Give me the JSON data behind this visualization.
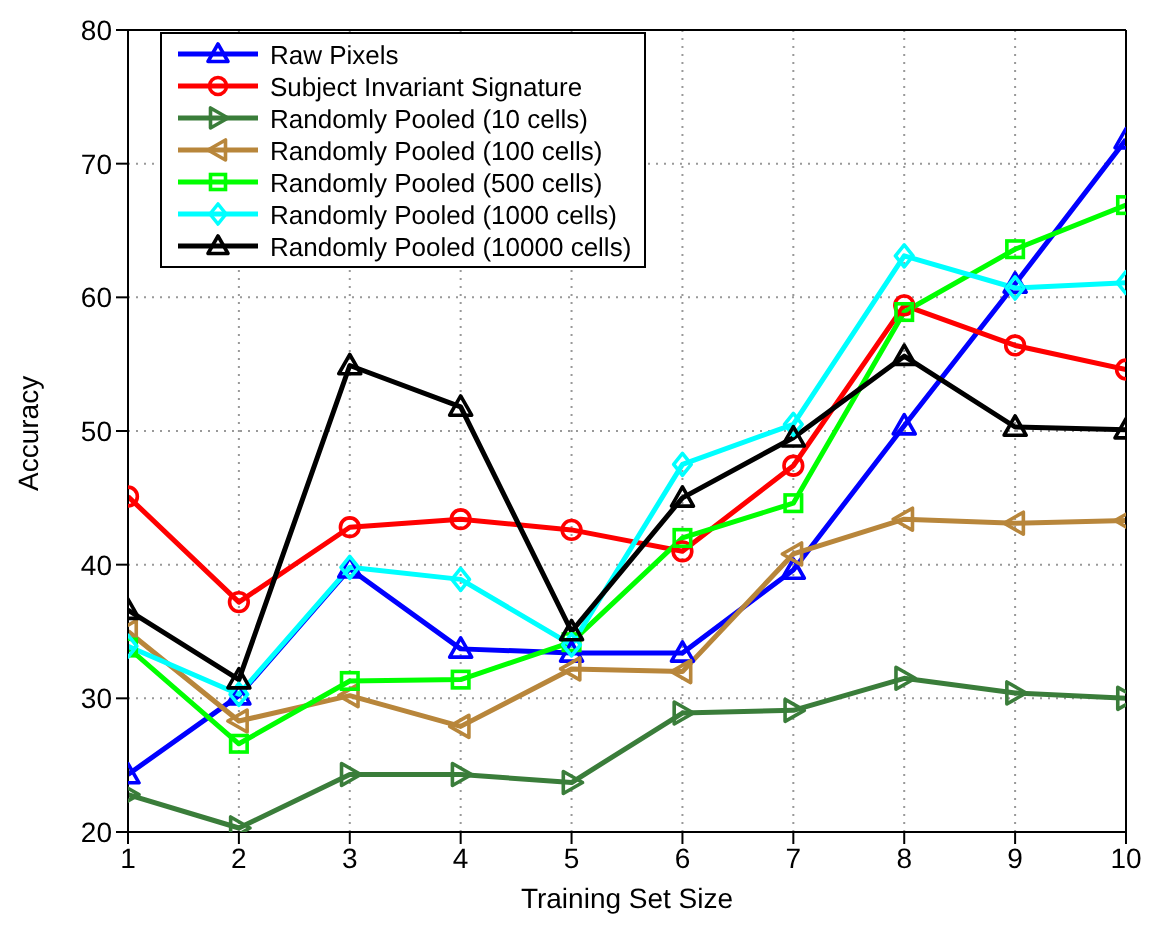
{
  "chart_data": {
    "type": "line",
    "xlabel": "Training Set Size",
    "ylabel": "Accuracy",
    "x": [
      1,
      2,
      3,
      4,
      5,
      6,
      7,
      8,
      9,
      10
    ],
    "xlim": [
      1,
      10
    ],
    "xticks": [
      1,
      2,
      3,
      4,
      5,
      6,
      7,
      8,
      9,
      10
    ],
    "ylim": [
      20,
      80
    ],
    "yticks": [
      20,
      30,
      40,
      50,
      60,
      70,
      80
    ],
    "grid": true,
    "legend": "top left",
    "line_style": "solid",
    "series": [
      {
        "name": "Raw Pixels",
        "color": "#0000ff",
        "marker": "triangle",
        "values": [
          24.3,
          30.2,
          39.7,
          33.7,
          33.4,
          33.4,
          39.6,
          50.4,
          61,
          71.8
        ]
      },
      {
        "name": "Subject Invariant Signature",
        "color": "#ff0000",
        "marker": "circle",
        "values": [
          45.1,
          37.2,
          42.8,
          43.4,
          42.6,
          41,
          47.4,
          59.4,
          56.4,
          54.6
        ]
      },
      {
        "name": "Randomly Pooled (10 cells)",
        "color": "#3a7d3a",
        "marker": "triangle-right",
        "values": [
          22.8,
          20.3,
          24.3,
          24.3,
          23.7,
          28.9,
          29.1,
          31.5,
          30.4,
          30
        ]
      },
      {
        "name": "Randomly Pooled (100 cells)",
        "color": "#b8863b",
        "marker": "triangle-left",
        "values": [
          35,
          28.3,
          30.2,
          27.9,
          32.2,
          32,
          40.8,
          43.4,
          43.1,
          43.3
        ]
      },
      {
        "name": "Randomly Pooled (500 cells)",
        "color": "#00ff00",
        "marker": "square",
        "values": [
          33.8,
          26.6,
          31.3,
          31.4,
          34.2,
          42,
          44.6,
          58.9,
          63.6,
          66.9
        ]
      },
      {
        "name": "Randomly Pooled (1000 cells)",
        "color": "#00ffff",
        "marker": "diamond",
        "values": [
          33.9,
          30.3,
          39.8,
          38.9,
          34,
          47.5,
          50.5,
          63.1,
          60.7,
          61.1
        ]
      },
      {
        "name": "Randomly Pooled (10000 cells)",
        "color": "#000000",
        "marker": "triangle",
        "values": [
          36.6,
          31.4,
          54.9,
          51.8,
          35,
          45,
          49.5,
          55.6,
          50.3,
          50.1
        ]
      }
    ]
  }
}
